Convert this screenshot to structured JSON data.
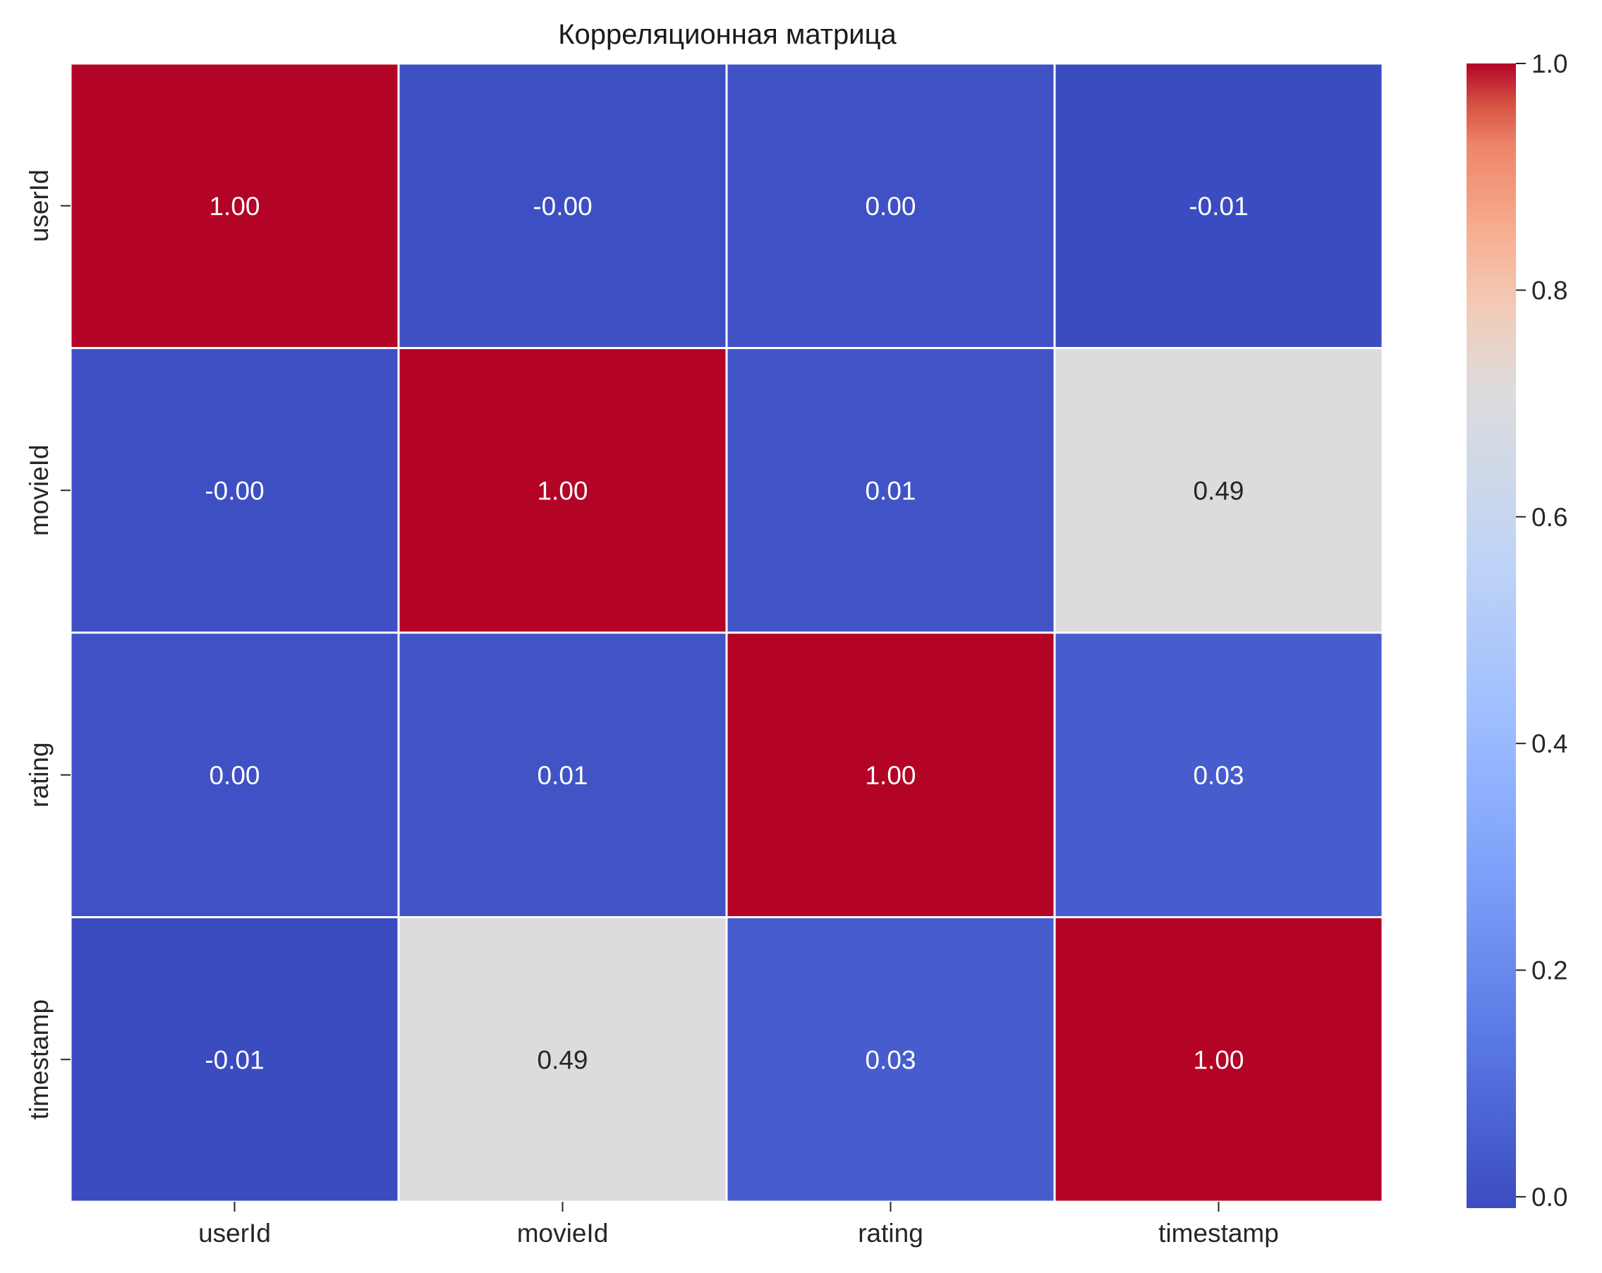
{
  "chart_data": {
    "type": "heatmap",
    "title": "Корреляционная матрица",
    "rows": [
      "userId",
      "movieId",
      "rating",
      "timestamp"
    ],
    "columns": [
      "userId",
      "movieId",
      "rating",
      "timestamp"
    ],
    "values": [
      [
        1.0,
        -0.004,
        0.002,
        -0.01
      ],
      [
        -0.004,
        1.0,
        0.008,
        0.49
      ],
      [
        0.002,
        0.008,
        1.0,
        0.03
      ],
      [
        -0.01,
        0.49,
        0.03,
        1.0
      ]
    ],
    "labels": [
      [
        "1.00",
        "-0.00",
        "0.00",
        "-0.01"
      ],
      [
        "-0.00",
        "1.00",
        "0.01",
        "0.49"
      ],
      [
        "0.00",
        "0.01",
        "1.00",
        "0.03"
      ],
      [
        "-0.01",
        "0.49",
        "0.03",
        "1.00"
      ]
    ],
    "colormap": "coolwarm",
    "colorbar": {
      "range": [
        -0.01,
        1.0
      ],
      "ticks": [
        0.0,
        0.2,
        0.4,
        0.6,
        0.8,
        1.0
      ],
      "tick_labels": [
        "0.0",
        "0.2",
        "0.4",
        "0.6",
        "0.8",
        "1.0"
      ]
    },
    "colors": {
      "low": "#3b4cc0",
      "mid": "#dddcdc",
      "high": "#b40426",
      "cell_border": "#ffffff"
    }
  }
}
